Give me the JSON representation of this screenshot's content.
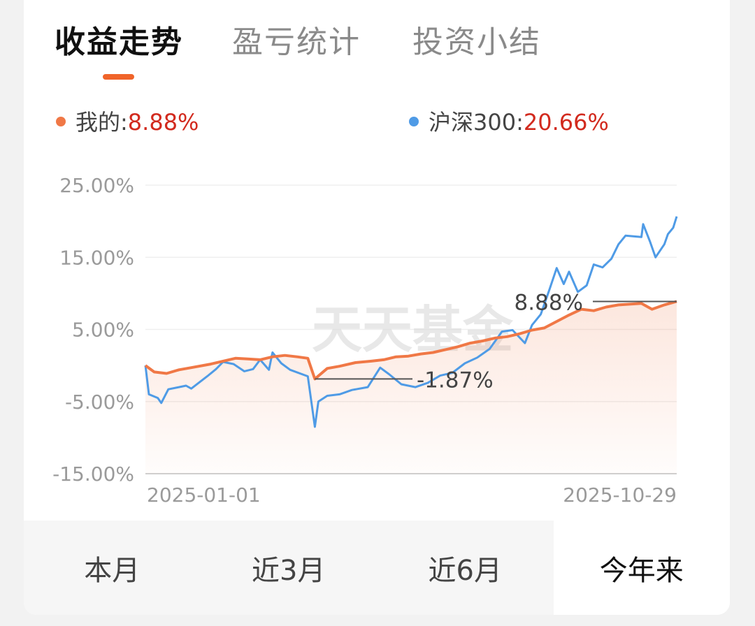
{
  "tabs": [
    "收益走势",
    "盈亏统计",
    "投资小结"
  ],
  "active_tab": 0,
  "legend": {
    "mine": {
      "label": "我的:",
      "value": "8.88%",
      "color": "#f07846"
    },
    "index": {
      "label": "沪深300:",
      "value": "20.66%",
      "color": "#4f9be6"
    }
  },
  "watermark": "天天基金",
  "periods": [
    "本月",
    "近3月",
    "近6月",
    "今年来"
  ],
  "active_period": 3,
  "chart_data": {
    "type": "line",
    "x_start": "2025-01-01",
    "x_end": "2025-10-29",
    "ylim": [
      -15,
      25
    ],
    "yticks": [
      "25.00%",
      "15.00%",
      "5.00%",
      "-5.00%",
      "-15.00%"
    ],
    "ytick_values": [
      25,
      15,
      5,
      -5,
      -15
    ],
    "grid": true,
    "annotations": [
      {
        "text": "8.88%",
        "value": 8.88,
        "date": "2025-10-29"
      },
      {
        "text": "-1.87%",
        "value": -1.87,
        "date": "2025-04-07"
      }
    ],
    "series": [
      {
        "name": "我的",
        "color": "#f07846",
        "points": [
          [
            "2025-01-01",
            0.0
          ],
          [
            "2025-01-06",
            -0.9
          ],
          [
            "2025-01-13",
            -1.1
          ],
          [
            "2025-01-20",
            -0.6
          ],
          [
            "2025-01-27",
            -0.3
          ],
          [
            "2025-02-07",
            0.2
          ],
          [
            "2025-02-14",
            0.6
          ],
          [
            "2025-02-21",
            1.0
          ],
          [
            "2025-02-28",
            0.9
          ],
          [
            "2025-03-07",
            0.8
          ],
          [
            "2025-03-14",
            1.2
          ],
          [
            "2025-03-21",
            1.4
          ],
          [
            "2025-03-28",
            1.2
          ],
          [
            "2025-04-03",
            1.0
          ],
          [
            "2025-04-07",
            -1.87
          ],
          [
            "2025-04-14",
            -0.4
          ],
          [
            "2025-04-21",
            -0.1
          ],
          [
            "2025-04-30",
            0.4
          ],
          [
            "2025-05-09",
            0.6
          ],
          [
            "2025-05-16",
            0.8
          ],
          [
            "2025-05-23",
            1.2
          ],
          [
            "2025-05-30",
            1.3
          ],
          [
            "2025-06-06",
            1.6
          ],
          [
            "2025-06-13",
            1.8
          ],
          [
            "2025-06-20",
            2.2
          ],
          [
            "2025-06-27",
            2.6
          ],
          [
            "2025-07-04",
            3.1
          ],
          [
            "2025-07-11",
            3.4
          ],
          [
            "2025-07-18",
            3.8
          ],
          [
            "2025-07-25",
            4.0
          ],
          [
            "2025-08-01",
            4.4
          ],
          [
            "2025-08-08",
            4.9
          ],
          [
            "2025-08-15",
            5.2
          ],
          [
            "2025-08-22",
            6.1
          ],
          [
            "2025-08-29",
            7.0
          ],
          [
            "2025-09-05",
            7.8
          ],
          [
            "2025-09-12",
            7.6
          ],
          [
            "2025-09-19",
            8.1
          ],
          [
            "2025-09-26",
            8.4
          ],
          [
            "2025-10-09",
            8.6
          ],
          [
            "2025-10-15",
            7.8
          ],
          [
            "2025-10-22",
            8.4
          ],
          [
            "2025-10-29",
            8.88
          ]
        ]
      },
      {
        "name": "沪深300",
        "color": "#4f9be6",
        "points": [
          [
            "2025-01-01",
            0.0
          ],
          [
            "2025-01-03",
            -4.0
          ],
          [
            "2025-01-08",
            -4.5
          ],
          [
            "2025-01-10",
            -5.2
          ],
          [
            "2025-01-14",
            -3.3
          ],
          [
            "2025-01-20",
            -3.0
          ],
          [
            "2025-01-24",
            -2.8
          ],
          [
            "2025-01-27",
            -3.2
          ],
          [
            "2025-02-05",
            -1.5
          ],
          [
            "2025-02-10",
            -0.5
          ],
          [
            "2025-02-14",
            0.5
          ],
          [
            "2025-02-20",
            0.2
          ],
          [
            "2025-02-26",
            -0.8
          ],
          [
            "2025-03-03",
            -0.5
          ],
          [
            "2025-03-07",
            0.8
          ],
          [
            "2025-03-12",
            -0.6
          ],
          [
            "2025-03-14",
            1.8
          ],
          [
            "2025-03-19",
            0.3
          ],
          [
            "2025-03-24",
            -0.6
          ],
          [
            "2025-04-03",
            -1.5
          ],
          [
            "2025-04-07",
            -8.5
          ],
          [
            "2025-04-09",
            -5.0
          ],
          [
            "2025-04-14",
            -4.2
          ],
          [
            "2025-04-21",
            -4.0
          ],
          [
            "2025-04-28",
            -3.4
          ],
          [
            "2025-05-07",
            -3.0
          ],
          [
            "2025-05-14",
            -0.3
          ],
          [
            "2025-05-19",
            -1.2
          ],
          [
            "2025-05-26",
            -2.6
          ],
          [
            "2025-06-03",
            -3.0
          ],
          [
            "2025-06-10",
            -2.4
          ],
          [
            "2025-06-17",
            -1.4
          ],
          [
            "2025-06-24",
            -1.0
          ],
          [
            "2025-07-01",
            0.3
          ],
          [
            "2025-07-08",
            1.1
          ],
          [
            "2025-07-15",
            2.3
          ],
          [
            "2025-07-22",
            4.7
          ],
          [
            "2025-07-28",
            4.9
          ],
          [
            "2025-08-04",
            3.1
          ],
          [
            "2025-08-08",
            5.6
          ],
          [
            "2025-08-13",
            7.1
          ],
          [
            "2025-08-18",
            10.6
          ],
          [
            "2025-08-22",
            13.5
          ],
          [
            "2025-08-26",
            11.3
          ],
          [
            "2025-08-29",
            13.0
          ],
          [
            "2025-09-03",
            10.2
          ],
          [
            "2025-09-08",
            11.1
          ],
          [
            "2025-09-12",
            14.0
          ],
          [
            "2025-09-17",
            13.6
          ],
          [
            "2025-09-22",
            14.8
          ],
          [
            "2025-09-26",
            16.8
          ],
          [
            "2025-09-30",
            18.0
          ],
          [
            "2025-10-09",
            17.8
          ],
          [
            "2025-10-10",
            19.6
          ],
          [
            "2025-10-14",
            17.1
          ],
          [
            "2025-10-17",
            15.0
          ],
          [
            "2025-10-22",
            16.8
          ],
          [
            "2025-10-24",
            18.2
          ],
          [
            "2025-10-27",
            19.1
          ],
          [
            "2025-10-29",
            20.66
          ]
        ]
      }
    ]
  }
}
